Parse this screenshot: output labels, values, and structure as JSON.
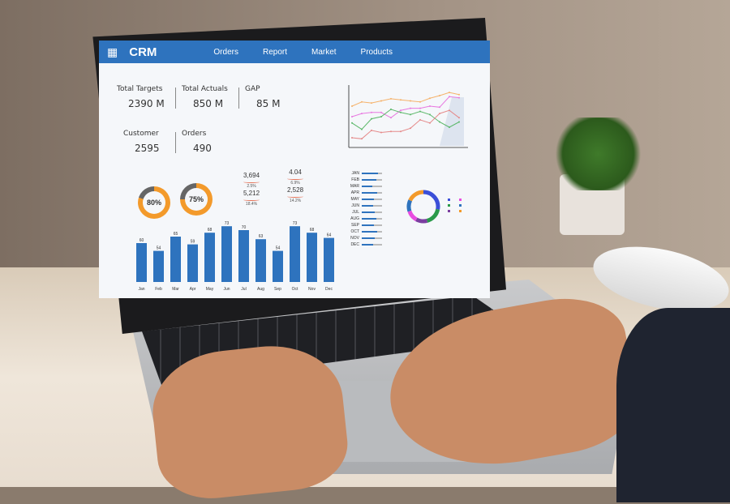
{
  "nav": {
    "brand": "CRM",
    "links": [
      "Orders",
      "Report",
      "Market",
      "Products"
    ]
  },
  "kpis": [
    {
      "label": "Total Targets",
      "value": "2390 M"
    },
    {
      "label": "Total Actuals",
      "value": "850 M"
    },
    {
      "label": "GAP",
      "value": "85 M"
    },
    {
      "label": "Customer",
      "value": "2595"
    },
    {
      "label": "Orders",
      "value": "490"
    }
  ],
  "donuts": [
    {
      "value": "80%",
      "fraction": 0.8
    },
    {
      "value": "75%",
      "fraction": 0.75
    }
  ],
  "stats": [
    {
      "value": "3,694",
      "sub": "2.5%"
    },
    {
      "value": "5,212",
      "sub": "18.4%"
    },
    {
      "value": "4.04",
      "sub": "6.9%"
    },
    {
      "value": "2,528",
      "sub": "14.2%"
    }
  ],
  "colors": {
    "accent": "#2e73be",
    "orange": "#f39a2b"
  },
  "chart_data": [
    {
      "type": "bar",
      "categories": [
        "Jan",
        "Feb",
        "Mar",
        "Apr",
        "May",
        "Jun",
        "Jul",
        "Aug",
        "Sep",
        "Oct",
        "Nov",
        "Dec"
      ],
      "values": [
        60,
        54,
        65,
        59,
        68,
        73,
        70,
        63,
        54,
        73,
        68,
        64
      ]
    },
    {
      "type": "line",
      "series": [
        {
          "color": "#f5b26b",
          "values": [
            60,
            68,
            66,
            70,
            74,
            72,
            70,
            68,
            75,
            80,
            86,
            82
          ]
        },
        {
          "color": "#e879e0",
          "values": [
            40,
            46,
            48,
            48,
            38,
            52,
            56,
            56,
            60,
            58,
            78,
            76
          ]
        },
        {
          "color": "#5cb86a",
          "values": [
            28,
            16,
            36,
            40,
            54,
            48,
            44,
            50,
            44,
            30,
            20,
            30
          ]
        },
        {
          "color": "#e58a8a",
          "values": [
            0,
            -2,
            14,
            10,
            12,
            12,
            18,
            34,
            28,
            46,
            52,
            38
          ]
        }
      ]
    },
    {
      "type": "bar",
      "orientation": "horizontal",
      "categories": [
        "JAN",
        "FEB",
        "MAR",
        "APR",
        "MAY",
        "JUN",
        "JUL",
        "AUG",
        "SEP",
        "OCT",
        "NOV",
        "DEC"
      ],
      "values": [
        80,
        70,
        50,
        75,
        60,
        55,
        65,
        70,
        60,
        75,
        65,
        55
      ]
    },
    {
      "type": "pie",
      "slices": [
        {
          "color": "#3b4fd8",
          "value": 28
        },
        {
          "color": "#2a9a4a",
          "value": 18
        },
        {
          "color": "#7b3fa0",
          "value": 12
        },
        {
          "color": "#e84ce0",
          "value": 12
        },
        {
          "color": "#2e73be",
          "value": 12
        },
        {
          "color": "#f39a2b",
          "value": 18
        }
      ]
    }
  ]
}
